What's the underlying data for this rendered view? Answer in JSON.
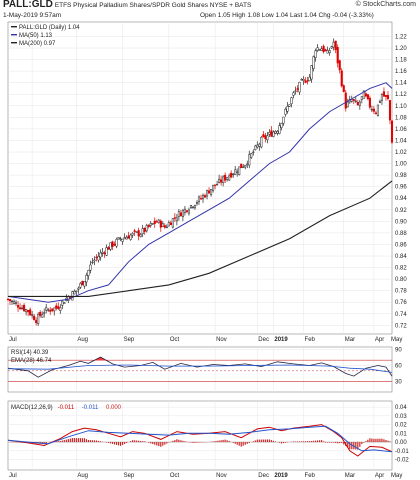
{
  "header": {
    "symbol": "PALL:GLD",
    "description": "ETFS Physical Palladium Shares/SPDR Gold Shares  NYSE + BATS",
    "timestamp": "1-May-2019 9:57am",
    "ohlc": "Open 1.05  High 1.08  Low 1.04  Last 1.04  Chg -0.04 (-3.33%)",
    "watermark": "© StockCharts.com"
  },
  "colors": {
    "up": "#222222",
    "down": "#e00000",
    "ma50": "#3333aa",
    "ma200": "#222222",
    "rsi": "#222244",
    "rsi_fill": "#ff3333",
    "macd": "#cc0000",
    "signal": "#2255cc",
    "hist": "#cc2222"
  },
  "chart_data": [
    {
      "type": "candlestick",
      "panel": "price",
      "legend": [
        "PALL:GLD (Daily) 1.04",
        "MA(50) 1.13",
        "MA(200) 0.97"
      ],
      "x_labels": [
        "Jul",
        "Aug",
        "Sep",
        "Oct",
        "Nov",
        "Dec",
        "2019",
        "Feb",
        "Mar",
        "Apr",
        "May"
      ],
      "ylim": [
        0.705,
        1.245
      ],
      "yticks": [
        0.72,
        0.74,
        0.76,
        0.78,
        0.8,
        0.82,
        0.84,
        0.86,
        0.88,
        0.9,
        0.92,
        0.94,
        0.96,
        0.98,
        1.0,
        1.02,
        1.04,
        1.06,
        1.08,
        1.1,
        1.12,
        1.14,
        1.16,
        1.18,
        1.2,
        1.22
      ],
      "close_path": [
        [
          0,
          0.765
        ],
        [
          5,
          0.755
        ],
        [
          10,
          0.745
        ],
        [
          14,
          0.73
        ],
        [
          18,
          0.745
        ],
        [
          24,
          0.75
        ],
        [
          30,
          0.77
        ],
        [
          34,
          0.78
        ],
        [
          38,
          0.8
        ],
        [
          42,
          0.83
        ],
        [
          48,
          0.85
        ],
        [
          52,
          0.86
        ],
        [
          56,
          0.87
        ],
        [
          60,
          0.875
        ],
        [
          66,
          0.88
        ],
        [
          70,
          0.89
        ],
        [
          74,
          0.9
        ],
        [
          78,
          0.89
        ],
        [
          84,
          0.91
        ],
        [
          88,
          0.92
        ],
        [
          92,
          0.93
        ],
        [
          96,
          0.94
        ],
        [
          102,
          0.96
        ],
        [
          106,
          0.97
        ],
        [
          110,
          0.98
        ],
        [
          114,
          0.99
        ],
        [
          118,
          1.0
        ],
        [
          122,
          1.02
        ],
        [
          126,
          1.04
        ],
        [
          130,
          1.05
        ],
        [
          134,
          1.06
        ],
        [
          138,
          1.09
        ],
        [
          142,
          1.12
        ],
        [
          146,
          1.14
        ],
        [
          150,
          1.15
        ],
        [
          153,
          1.2
        ],
        [
          156,
          1.2
        ],
        [
          159,
          1.19
        ],
        [
          162,
          1.21
        ],
        [
          165,
          1.16
        ],
        [
          168,
          1.1
        ],
        [
          171,
          1.11
        ],
        [
          174,
          1.1
        ],
        [
          177,
          1.12
        ],
        [
          180,
          1.1
        ],
        [
          183,
          1.09
        ],
        [
          186,
          1.12
        ],
        [
          189,
          1.11
        ],
        [
          191,
          1.04
        ]
      ],
      "ma50_path": [
        [
          0,
          0.77
        ],
        [
          20,
          0.76
        ],
        [
          30,
          0.765
        ],
        [
          40,
          0.78
        ],
        [
          50,
          0.79
        ],
        [
          60,
          0.83
        ],
        [
          70,
          0.86
        ],
        [
          80,
          0.88
        ],
        [
          90,
          0.9
        ],
        [
          100,
          0.92
        ],
        [
          110,
          0.94
        ],
        [
          120,
          0.97
        ],
        [
          130,
          1.0
        ],
        [
          140,
          1.02
        ],
        [
          150,
          1.06
        ],
        [
          160,
          1.09
        ],
        [
          170,
          1.11
        ],
        [
          180,
          1.13
        ],
        [
          188,
          1.14
        ],
        [
          191,
          1.13
        ]
      ],
      "ma200_path": [
        [
          0,
          0.77
        ],
        [
          20,
          0.77
        ],
        [
          40,
          0.77
        ],
        [
          60,
          0.78
        ],
        [
          80,
          0.79
        ],
        [
          100,
          0.81
        ],
        [
          120,
          0.84
        ],
        [
          140,
          0.87
        ],
        [
          160,
          0.91
        ],
        [
          180,
          0.94
        ],
        [
          191,
          0.97
        ]
      ]
    },
    {
      "type": "line",
      "panel": "rsi",
      "legend": [
        "RSI(14) 40.39",
        "EMA(28) 46.74"
      ],
      "ylim": [
        10,
        95
      ],
      "yticks": [
        30,
        60,
        90
      ],
      "levels": [
        70,
        30
      ],
      "rsi_path": [
        [
          0,
          55
        ],
        [
          10,
          50
        ],
        [
          15,
          38
        ],
        [
          22,
          52
        ],
        [
          30,
          60
        ],
        [
          36,
          68
        ],
        [
          40,
          64
        ],
        [
          46,
          76
        ],
        [
          52,
          63
        ],
        [
          58,
          57
        ],
        [
          66,
          60
        ],
        [
          72,
          66
        ],
        [
          78,
          53
        ],
        [
          86,
          64
        ],
        [
          94,
          57
        ],
        [
          102,
          62
        ],
        [
          110,
          60
        ],
        [
          118,
          63
        ],
        [
          126,
          58
        ],
        [
          134,
          67
        ],
        [
          142,
          63
        ],
        [
          150,
          60
        ],
        [
          156,
          65
        ],
        [
          162,
          58
        ],
        [
          168,
          45
        ],
        [
          172,
          40
        ],
        [
          178,
          55
        ],
        [
          184,
          60
        ],
        [
          188,
          57
        ],
        [
          191,
          40
        ]
      ],
      "ema_path": [
        [
          0,
          54
        ],
        [
          20,
          53
        ],
        [
          40,
          60
        ],
        [
          60,
          61
        ],
        [
          80,
          59
        ],
        [
          100,
          59
        ],
        [
          120,
          60
        ],
        [
          140,
          61
        ],
        [
          160,
          59
        ],
        [
          170,
          55
        ],
        [
          180,
          53
        ],
        [
          191,
          47
        ]
      ]
    },
    {
      "type": "line",
      "panel": "macd",
      "legend": [
        "MACD(12,26,9)",
        "-0.011",
        "-0.011",
        "0.000"
      ],
      "ylim": [
        -0.032,
        0.047
      ],
      "yticks": [
        -0.02,
        -0.01,
        0.0,
        0.01,
        0.02,
        0.03,
        0.04
      ],
      "macd_path": [
        [
          0,
          0.002
        ],
        [
          10,
          -0.001
        ],
        [
          18,
          -0.004
        ],
        [
          26,
          0.004
        ],
        [
          32,
          0.012
        ],
        [
          38,
          0.016
        ],
        [
          44,
          0.014
        ],
        [
          50,
          0.01
        ],
        [
          56,
          0.006
        ],
        [
          62,
          0.012
        ],
        [
          68,
          0.01
        ],
        [
          76,
          0.003
        ],
        [
          84,
          0.012
        ],
        [
          92,
          0.009
        ],
        [
          100,
          0.01
        ],
        [
          108,
          0.012
        ],
        [
          116,
          0.005
        ],
        [
          124,
          0.015
        ],
        [
          130,
          0.017
        ],
        [
          136,
          0.013
        ],
        [
          142,
          0.016
        ],
        [
          150,
          0.018
        ],
        [
          156,
          0.02
        ],
        [
          162,
          0.012
        ],
        [
          166,
          0.005
        ],
        [
          170,
          -0.01
        ],
        [
          174,
          -0.016
        ],
        [
          180,
          -0.005
        ],
        [
          186,
          -0.006
        ],
        [
          191,
          -0.011
        ]
      ],
      "signal_path": [
        [
          0,
          0.002
        ],
        [
          10,
          0.0
        ],
        [
          20,
          -0.002
        ],
        [
          30,
          0.006
        ],
        [
          40,
          0.013
        ],
        [
          50,
          0.011
        ],
        [
          60,
          0.01
        ],
        [
          70,
          0.009
        ],
        [
          80,
          0.008
        ],
        [
          90,
          0.01
        ],
        [
          100,
          0.01
        ],
        [
          110,
          0.009
        ],
        [
          120,
          0.011
        ],
        [
          130,
          0.014
        ],
        [
          140,
          0.015
        ],
        [
          150,
          0.017
        ],
        [
          158,
          0.018
        ],
        [
          164,
          0.01
        ],
        [
          170,
          -0.002
        ],
        [
          176,
          -0.01
        ],
        [
          182,
          -0.009
        ],
        [
          191,
          -0.011
        ]
      ]
    }
  ]
}
